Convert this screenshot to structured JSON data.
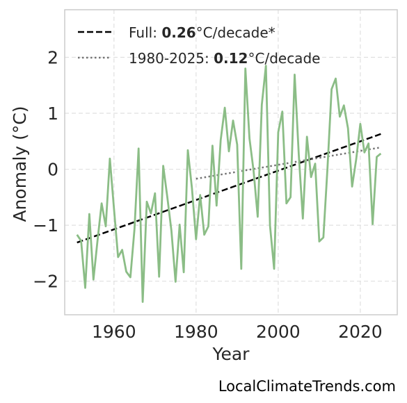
{
  "chart_data": {
    "type": "line",
    "title": "",
    "xlabel": "Year",
    "ylabel": "Anomaly (°C)",
    "xlim": [
      1948,
      2029
    ],
    "ylim": [
      -2.6,
      2.85
    ],
    "grid": true,
    "legend_position": "top-left",
    "xticks": [
      1960,
      1980,
      2000,
      2020
    ],
    "xtick_labels": [
      "1960",
      "1980",
      "2000",
      "2020"
    ],
    "yticks": [
      -2,
      -1,
      0,
      1,
      2
    ],
    "ytick_labels": [
      "−2",
      "−1",
      "0",
      "1",
      "2"
    ],
    "colors": {
      "series": "#8bbd86",
      "full_trend": "#000000",
      "recent_trend": "#737373",
      "grid": "#e0e0e0",
      "frame": "#cccccc"
    },
    "series": [
      {
        "x": [
          1951,
          1952,
          1953,
          1954,
          1955,
          1956,
          1957,
          1958,
          1959,
          1960,
          1961,
          1962,
          1963,
          1964,
          1965,
          1966,
          1967,
          1968,
          1969,
          1970,
          1971,
          1972,
          1973,
          1974,
          1975,
          1976,
          1977,
          1978,
          1979,
          1980,
          1981,
          1982,
          1983,
          1984,
          1985,
          1986,
          1987,
          1988,
          1989,
          1990,
          1991,
          1992,
          1993,
          1994,
          1995,
          1996,
          1997,
          1998,
          1999,
          2000,
          2001,
          2002,
          2003,
          2004,
          2005,
          2006,
          2007,
          2008,
          2009,
          2010,
          2011,
          2012,
          2013,
          2014,
          2015,
          2016,
          2017,
          2018,
          2019,
          2020,
          2021,
          2022,
          2023,
          2024,
          2025
        ],
        "values": [
          -1.17,
          -1.28,
          -2.12,
          -0.8,
          -1.97,
          -1.27,
          -0.61,
          -1.02,
          0.19,
          -0.7,
          -1.57,
          -1.44,
          -1.83,
          -1.93,
          -1.07,
          0.37,
          -2.37,
          -0.58,
          -0.79,
          -0.43,
          -1.92,
          0.06,
          -0.5,
          -1.1,
          -2.01,
          -0.99,
          -1.84,
          0.34,
          -0.34,
          -1.25,
          -0.46,
          -1.17,
          -1.02,
          0.42,
          -0.65,
          0.52,
          1.1,
          0.32,
          0.87,
          0.44,
          -1.78,
          1.8,
          0.55,
          -0.03,
          -0.85,
          1.15,
          1.85,
          -1.01,
          -1.78,
          0.66,
          1.03,
          -0.61,
          -0.5,
          1.69,
          0.27,
          -0.88,
          0.58,
          -0.14,
          0.1,
          -1.29,
          -1.22,
          0.02,
          1.43,
          1.62,
          0.94,
          1.14,
          0.73,
          -0.31,
          0.18,
          0.81,
          0.3,
          0.46,
          -0.98,
          0.22,
          0.28
        ]
      }
    ],
    "trends": [
      {
        "name": "Full",
        "rate": "0.26",
        "unit": "°C/decade*",
        "style": "dashed",
        "x": [
          1951,
          2025
        ],
        "values": [
          -1.31,
          0.63
        ]
      },
      {
        "name": "1980-2025",
        "rate": "0.12",
        "unit": "°C/decade",
        "style": "dotted",
        "x": [
          1980,
          2025
        ],
        "values": [
          -0.17,
          0.39
        ]
      }
    ]
  },
  "watermark": "LocalClimateTrends.com"
}
